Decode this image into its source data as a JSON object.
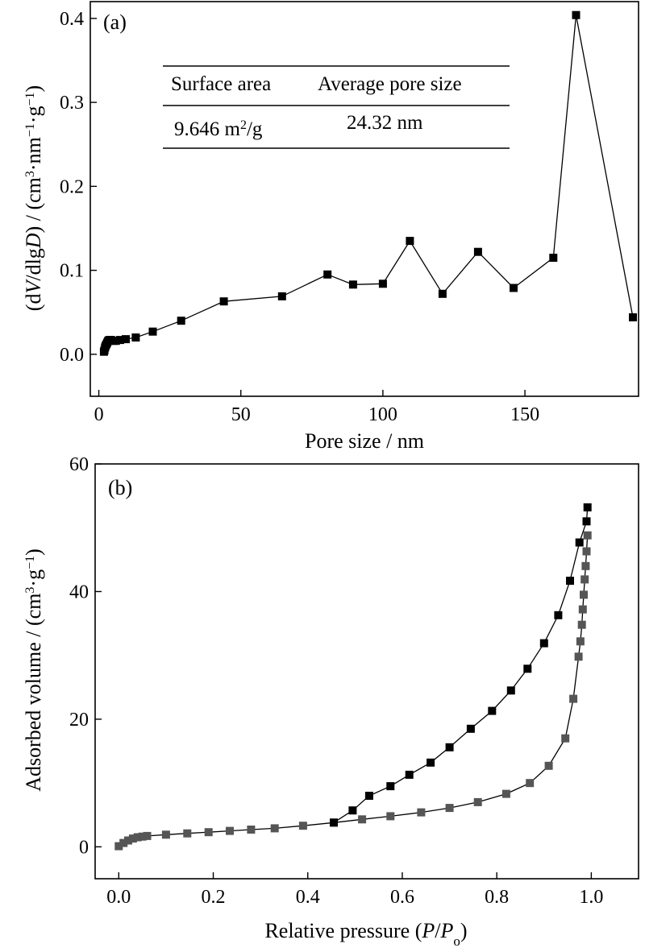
{
  "colors": {
    "axis": "#000000",
    "series_dark": "#000000",
    "series_grey": "#555555"
  },
  "table": {
    "headers": [
      "Surface area",
      "Average pore size"
    ],
    "surface_value": "9.646 m",
    "surface_sup": "2",
    "surface_unit": "/g",
    "pore_value": "24.32 nm"
  },
  "chart_data": [
    {
      "type": "line",
      "panel_label": "(a)",
      "xlabel": "Pore size / nm",
      "ylabel_parts": [
        "(d",
        "V",
        "/dlg",
        "D",
        ") / (cm",
        "3",
        "·nm",
        "−1",
        "·g",
        "−1",
        ")"
      ],
      "xlim": [
        -3,
        190
      ],
      "ylim": [
        -0.05,
        0.42
      ],
      "xticks": [
        0,
        50,
        100,
        150
      ],
      "yticks": [
        0.0,
        0.1,
        0.2,
        0.3,
        0.4
      ],
      "xtick_labels": [
        "0",
        "50",
        "100",
        "150"
      ],
      "ytick_labels": [
        "0.0",
        "0.1",
        "0.2",
        "0.3",
        "0.4"
      ],
      "grid": false,
      "series": [
        {
          "marker": "square",
          "x": [
            1.8,
            2.0,
            2.2,
            2.4,
            2.7,
            3.0,
            3.3,
            3.7,
            4.3,
            5.0,
            6.0,
            7.5,
            9.5,
            13,
            19,
            29,
            44,
            64.5,
            80.5,
            89.5,
            100,
            109.5,
            121,
            133.5,
            146,
            160,
            168,
            188
          ],
          "y": [
            0.003,
            0.005,
            0.008,
            0.01,
            0.012,
            0.014,
            0.016,
            0.017,
            0.017,
            0.016,
            0.016,
            0.017,
            0.018,
            0.02,
            0.027,
            0.04,
            0.063,
            0.069,
            0.095,
            0.083,
            0.084,
            0.135,
            0.072,
            0.122,
            0.079,
            0.115,
            0.404,
            0.044
          ]
        }
      ]
    },
    {
      "type": "line",
      "panel_label": "(b)",
      "xlabel_parts": [
        "Relative pressure (",
        "P",
        "/",
        "P",
        "o",
        ")"
      ],
      "ylabel_parts": [
        "Adsorbed volume / (cm",
        "3",
        "·g",
        "−1",
        ")"
      ],
      "xlim": [
        -0.05,
        1.1
      ],
      "ylim": [
        -5,
        60
      ],
      "xticks": [
        0.0,
        0.2,
        0.4,
        0.6,
        0.8,
        1.0
      ],
      "yticks": [
        0,
        20,
        40,
        60
      ],
      "xtick_labels": [
        "0.0",
        "0.2",
        "0.4",
        "0.6",
        "0.8",
        "1.0"
      ],
      "ytick_labels": [
        "0",
        "20",
        "40",
        "60"
      ],
      "grid": false,
      "series": [
        {
          "marker": "square",
          "color_key": "series_grey",
          "x": [
            0.0,
            0.01,
            0.02,
            0.03,
            0.04,
            0.05,
            0.06,
            0.1,
            0.145,
            0.19,
            0.235,
            0.28,
            0.33,
            0.39,
            0.455,
            0.515,
            0.575,
            0.64,
            0.7,
            0.76,
            0.82,
            0.87,
            0.91,
            0.945,
            0.962,
            0.973,
            0.977,
            0.98,
            0.982,
            0.984,
            0.986,
            0.988,
            0.99,
            0.992
          ],
          "y": [
            0.1,
            0.6,
            1.0,
            1.3,
            1.5,
            1.6,
            1.7,
            1.9,
            2.1,
            2.3,
            2.5,
            2.7,
            2.9,
            3.3,
            3.8,
            4.3,
            4.8,
            5.4,
            6.1,
            7.0,
            8.3,
            10.0,
            12.7,
            17.0,
            23.2,
            29.8,
            32.2,
            34.8,
            37.2,
            39.5,
            41.9,
            44.0,
            46.3,
            48.8
          ]
        },
        {
          "marker": "square",
          "color_key": "series_dark",
          "x": [
            0.992,
            0.99,
            0.975,
            0.955,
            0.93,
            0.9,
            0.865,
            0.83,
            0.79,
            0.745,
            0.7,
            0.66,
            0.615,
            0.575,
            0.53,
            0.495,
            0.455
          ],
          "y": [
            53.2,
            51.0,
            47.7,
            41.7,
            36.3,
            31.9,
            27.9,
            24.5,
            21.3,
            18.5,
            15.6,
            13.2,
            11.3,
            9.5,
            8.0,
            5.7,
            3.8
          ]
        }
      ]
    }
  ]
}
